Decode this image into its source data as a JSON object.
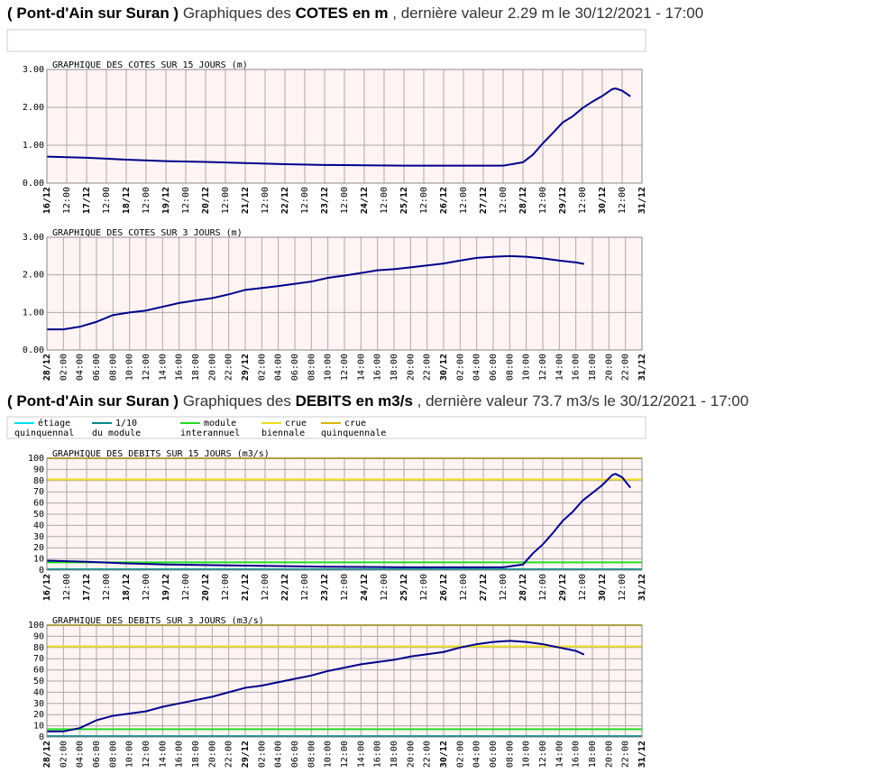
{
  "headings": [
    {
      "parts": [
        {
          "text": "( Pont-d'Ain sur Suran )",
          "bold": true
        },
        {
          "text": " Graphiques des ",
          "bold": false
        },
        {
          "text": "COTES en m",
          "bold": true
        },
        {
          "text": " , dernière valeur 2.29 m le 30/12/2021 - 17:00",
          "bold": false
        }
      ]
    },
    {
      "parts": [
        {
          "text": "( Pont-d'Ain sur Suran )",
          "bold": true
        },
        {
          "text": " Graphiques des ",
          "bold": false
        },
        {
          "text": "DEBITS en m3/s",
          "bold": true
        },
        {
          "text": " , dernière valeur 73.7 m3/s le 30/12/2021 - 17:00",
          "bold": false
        }
      ]
    }
  ],
  "chart_data": [
    {
      "type": "line",
      "title": "GRAPHIQUE DES COTES SUR 15 JOURS (m)",
      "color": "#00008b",
      "grid": true,
      "x": [
        "16/12 00:00",
        "17/12 00:00",
        "18/12 00:00",
        "19/12 00:00",
        "20/12 00:00",
        "21/12 00:00",
        "22/12 00:00",
        "23/12 00:00",
        "24/12 00:00",
        "25/12 00:00",
        "26/12 00:00",
        "27/12 00:00",
        "27/12 12:00",
        "28/12 00:00",
        "28/12 06:00",
        "28/12 12:00",
        "28/12 18:00",
        "29/12 00:00",
        "29/12 06:00",
        "29/12 12:00",
        "29/12 18:00",
        "30/12 00:00",
        "30/12 06:00",
        "30/12 08:00",
        "30/12 12:00",
        "30/12 17:00"
      ],
      "values": [
        0.7,
        0.67,
        0.62,
        0.58,
        0.56,
        0.53,
        0.5,
        0.48,
        0.47,
        0.46,
        0.46,
        0.46,
        0.46,
        0.55,
        0.75,
        1.05,
        1.32,
        1.6,
        1.76,
        1.98,
        2.15,
        2.3,
        2.48,
        2.5,
        2.44,
        2.29
      ],
      "ylim": [
        0,
        3
      ],
      "yticks": [
        {
          "value": 0,
          "label": "0.00"
        },
        {
          "value": 1,
          "label": "1.00"
        },
        {
          "value": 2,
          "label": "2.00"
        },
        {
          "value": 3,
          "label": "3.00"
        }
      ],
      "xlim": [
        "16/12 00:00",
        "31/12 00:00"
      ],
      "xticks": [
        {
          "value": "16/12 00:00",
          "label": "16/12"
        },
        {
          "value": "16/12 12:00",
          "label": "12:00"
        },
        {
          "value": "17/12 00:00",
          "label": "17/12"
        },
        {
          "value": "17/12 12:00",
          "label": "12:00"
        },
        {
          "value": "18/12 00:00",
          "label": "18/12"
        },
        {
          "value": "18/12 12:00",
          "label": "12:00"
        },
        {
          "value": "19/12 00:00",
          "label": "19/12"
        },
        {
          "value": "19/12 12:00",
          "label": "12:00"
        },
        {
          "value": "20/12 00:00",
          "label": "20/12"
        },
        {
          "value": "20/12 12:00",
          "label": "12:00"
        },
        {
          "value": "21/12 00:00",
          "label": "21/12"
        },
        {
          "value": "21/12 12:00",
          "label": "12:00"
        },
        {
          "value": "22/12 00:00",
          "label": "22/12"
        },
        {
          "value": "22/12 12:00",
          "label": "12:00"
        },
        {
          "value": "23/12 00:00",
          "label": "23/12"
        },
        {
          "value": "23/12 12:00",
          "label": "12:00"
        },
        {
          "value": "24/12 00:00",
          "label": "24/12"
        },
        {
          "value": "24/12 12:00",
          "label": "12:00"
        },
        {
          "value": "25/12 00:00",
          "label": "25/12"
        },
        {
          "value": "25/12 12:00",
          "label": "12:00"
        },
        {
          "value": "26/12 00:00",
          "label": "26/12"
        },
        {
          "value": "26/12 12:00",
          "label": "12:00"
        },
        {
          "value": "27/12 00:00",
          "label": "27/12"
        },
        {
          "value": "27/12 12:00",
          "label": "12:00"
        },
        {
          "value": "28/12 00:00",
          "label": "28/12"
        },
        {
          "value": "28/12 12:00",
          "label": "12:00"
        },
        {
          "value": "29/12 00:00",
          "label": "29/12"
        },
        {
          "value": "29/12 12:00",
          "label": "12:00"
        },
        {
          "value": "30/12 00:00",
          "label": "30/12"
        },
        {
          "value": "30/12 12:00",
          "label": "12:00"
        },
        {
          "value": "31/12 00:00",
          "label": "31/12"
        }
      ]
    },
    {
      "type": "line",
      "title": "GRAPHIQUE DES COTES SUR 3 JOURS (m)",
      "color": "#00008b",
      "grid": true,
      "x": [
        "28/12 00:00",
        "28/12 02:00",
        "28/12 04:00",
        "28/12 06:00",
        "28/12 08:00",
        "28/12 10:00",
        "28/12 12:00",
        "28/12 14:00",
        "28/12 16:00",
        "28/12 18:00",
        "28/12 20:00",
        "28/12 22:00",
        "29/12 00:00",
        "29/12 02:00",
        "29/12 04:00",
        "29/12 06:00",
        "29/12 08:00",
        "29/12 10:00",
        "29/12 12:00",
        "29/12 14:00",
        "29/12 16:00",
        "29/12 18:00",
        "29/12 20:00",
        "29/12 22:00",
        "30/12 00:00",
        "30/12 02:00",
        "30/12 04:00",
        "30/12 06:00",
        "30/12 08:00",
        "30/12 10:00",
        "30/12 12:00",
        "30/12 14:00",
        "30/12 16:00",
        "30/12 17:00"
      ],
      "values": [
        0.55,
        0.55,
        0.62,
        0.75,
        0.93,
        1.0,
        1.05,
        1.15,
        1.25,
        1.32,
        1.38,
        1.48,
        1.6,
        1.65,
        1.7,
        1.76,
        1.82,
        1.92,
        1.98,
        2.05,
        2.12,
        2.15,
        2.2,
        2.25,
        2.3,
        2.38,
        2.45,
        2.48,
        2.5,
        2.48,
        2.44,
        2.38,
        2.33,
        2.29
      ],
      "ylim": [
        0,
        3
      ],
      "yticks": [
        {
          "value": 0,
          "label": "0.00"
        },
        {
          "value": 1,
          "label": "1.00"
        },
        {
          "value": 2,
          "label": "2.00"
        },
        {
          "value": 3,
          "label": "3.00"
        }
      ],
      "xlim": [
        "28/12 00:00",
        "31/12 00:00"
      ],
      "xticks": [
        {
          "value": "28/12 00:00",
          "label": "28/12"
        },
        {
          "value": "28/12 02:00",
          "label": "02:00"
        },
        {
          "value": "28/12 04:00",
          "label": "04:00"
        },
        {
          "value": "28/12 06:00",
          "label": "06:00"
        },
        {
          "value": "28/12 08:00",
          "label": "08:00"
        },
        {
          "value": "28/12 10:00",
          "label": "10:00"
        },
        {
          "value": "28/12 12:00",
          "label": "12:00"
        },
        {
          "value": "28/12 14:00",
          "label": "14:00"
        },
        {
          "value": "28/12 16:00",
          "label": "16:00"
        },
        {
          "value": "28/12 18:00",
          "label": "18:00"
        },
        {
          "value": "28/12 20:00",
          "label": "20:00"
        },
        {
          "value": "28/12 22:00",
          "label": "22:00"
        },
        {
          "value": "29/12 00:00",
          "label": "29/12"
        },
        {
          "value": "29/12 02:00",
          "label": "02:00"
        },
        {
          "value": "29/12 04:00",
          "label": "04:00"
        },
        {
          "value": "29/12 06:00",
          "label": "06:00"
        },
        {
          "value": "29/12 08:00",
          "label": "08:00"
        },
        {
          "value": "29/12 10:00",
          "label": "10:00"
        },
        {
          "value": "29/12 12:00",
          "label": "12:00"
        },
        {
          "value": "29/12 14:00",
          "label": "14:00"
        },
        {
          "value": "29/12 16:00",
          "label": "16:00"
        },
        {
          "value": "29/12 18:00",
          "label": "18:00"
        },
        {
          "value": "29/12 20:00",
          "label": "20:00"
        },
        {
          "value": "29/12 22:00",
          "label": "22:00"
        },
        {
          "value": "30/12 00:00",
          "label": "30/12"
        },
        {
          "value": "30/12 02:00",
          "label": "02:00"
        },
        {
          "value": "30/12 04:00",
          "label": "04:00"
        },
        {
          "value": "30/12 06:00",
          "label": "06:00"
        },
        {
          "value": "30/12 08:00",
          "label": "08:00"
        },
        {
          "value": "30/12 10:00",
          "label": "10:00"
        },
        {
          "value": "30/12 12:00",
          "label": "12:00"
        },
        {
          "value": "30/12 14:00",
          "label": "14:00"
        },
        {
          "value": "30/12 16:00",
          "label": "16:00"
        },
        {
          "value": "30/12 18:00",
          "label": "18:00"
        },
        {
          "value": "30/12 20:00",
          "label": "20:00"
        },
        {
          "value": "30/12 22:00",
          "label": "22:00"
        },
        {
          "value": "31/12 00:00",
          "label": "31/12"
        }
      ]
    },
    {
      "type": "line",
      "title": "GRAPHIQUE DES DEBITS SUR 15 JOURS (m3/s)",
      "color": "#00008b",
      "grid": true,
      "reference_lines": [
        {
          "name": [
            "étiage",
            "quinquennal"
          ],
          "color": "#00e0ee",
          "value": 0.5
        },
        {
          "name": [
            "1/10",
            "du module"
          ],
          "color": "#008b8b",
          "value": 0.7
        },
        {
          "name": [
            "module",
            "interannuel"
          ],
          "color": "#22dd22",
          "value": 7
        },
        {
          "name": [
            "crue",
            "biennale"
          ],
          "color": "#f0e020",
          "value": 81
        },
        {
          "name": [
            "crue",
            "quinquennale"
          ],
          "color": "#d8b800",
          "value": 100
        }
      ],
      "x": [
        "16/12 00:00",
        "17/12 00:00",
        "18/12 00:00",
        "19/12 00:00",
        "20/12 00:00",
        "21/12 00:00",
        "22/12 00:00",
        "23/12 00:00",
        "24/12 00:00",
        "25/12 00:00",
        "26/12 00:00",
        "27/12 00:00",
        "27/12 12:00",
        "28/12 00:00",
        "28/12 06:00",
        "28/12 12:00",
        "28/12 18:00",
        "29/12 00:00",
        "29/12 06:00",
        "29/12 12:00",
        "29/12 18:00",
        "30/12 00:00",
        "30/12 06:00",
        "30/12 08:00",
        "30/12 12:00",
        "30/12 17:00"
      ],
      "values": [
        8.5,
        7.5,
        6.0,
        5.0,
        4.5,
        4.0,
        3.5,
        3.0,
        2.8,
        2.5,
        2.5,
        2.5,
        2.5,
        5,
        15,
        23,
        33,
        44,
        52,
        62,
        69,
        76,
        85,
        86,
        83,
        73.7
      ],
      "ylim": [
        0,
        100
      ],
      "yticks": [
        0,
        10,
        20,
        30,
        40,
        50,
        60,
        70,
        80,
        90,
        100
      ],
      "xlim": [
        "16/12 00:00",
        "31/12 00:00"
      ],
      "xticks": [
        {
          "value": "16/12 00:00",
          "label": "16/12"
        },
        {
          "value": "16/12 12:00",
          "label": "12:00"
        },
        {
          "value": "17/12 00:00",
          "label": "17/12"
        },
        {
          "value": "17/12 12:00",
          "label": "12:00"
        },
        {
          "value": "18/12 00:00",
          "label": "18/12"
        },
        {
          "value": "18/12 12:00",
          "label": "12:00"
        },
        {
          "value": "19/12 00:00",
          "label": "19/12"
        },
        {
          "value": "19/12 12:00",
          "label": "12:00"
        },
        {
          "value": "20/12 00:00",
          "label": "20/12"
        },
        {
          "value": "20/12 12:00",
          "label": "12:00"
        },
        {
          "value": "21/12 00:00",
          "label": "21/12"
        },
        {
          "value": "21/12 12:00",
          "label": "12:00"
        },
        {
          "value": "22/12 00:00",
          "label": "22/12"
        },
        {
          "value": "22/12 12:00",
          "label": "12:00"
        },
        {
          "value": "23/12 00:00",
          "label": "23/12"
        },
        {
          "value": "23/12 12:00",
          "label": "12:00"
        },
        {
          "value": "24/12 00:00",
          "label": "24/12"
        },
        {
          "value": "24/12 12:00",
          "label": "12:00"
        },
        {
          "value": "25/12 00:00",
          "label": "25/12"
        },
        {
          "value": "25/12 12:00",
          "label": "12:00"
        },
        {
          "value": "26/12 00:00",
          "label": "26/12"
        },
        {
          "value": "26/12 12:00",
          "label": "12:00"
        },
        {
          "value": "27/12 00:00",
          "label": "27/12"
        },
        {
          "value": "27/12 12:00",
          "label": "12:00"
        },
        {
          "value": "28/12 00:00",
          "label": "28/12"
        },
        {
          "value": "28/12 12:00",
          "label": "12:00"
        },
        {
          "value": "29/12 00:00",
          "label": "29/12"
        },
        {
          "value": "29/12 12:00",
          "label": "12:00"
        },
        {
          "value": "30/12 00:00",
          "label": "30/12"
        },
        {
          "value": "30/12 12:00",
          "label": "12:00"
        },
        {
          "value": "31/12 00:00",
          "label": "31/12"
        }
      ]
    },
    {
      "type": "line",
      "title": "GRAPHIQUE DES DEBITS SUR 3 JOURS (m3/s)",
      "color": "#00008b",
      "grid": true,
      "reference_lines": [
        {
          "color": "#00e0ee",
          "value": 0.5
        },
        {
          "color": "#008b8b",
          "value": 0.7
        },
        {
          "color": "#22dd22",
          "value": 7
        },
        {
          "color": "#f0e020",
          "value": 81
        },
        {
          "color": "#d8b800",
          "value": 100
        }
      ],
      "x": [
        "28/12 00:00",
        "28/12 02:00",
        "28/12 04:00",
        "28/12 06:00",
        "28/12 08:00",
        "28/12 10:00",
        "28/12 12:00",
        "28/12 14:00",
        "28/12 16:00",
        "28/12 18:00",
        "28/12 20:00",
        "28/12 22:00",
        "29/12 00:00",
        "29/12 02:00",
        "29/12 04:00",
        "29/12 06:00",
        "29/12 08:00",
        "29/12 10:00",
        "29/12 12:00",
        "29/12 14:00",
        "29/12 16:00",
        "29/12 18:00",
        "29/12 20:00",
        "29/12 22:00",
        "30/12 00:00",
        "30/12 02:00",
        "30/12 04:00",
        "30/12 06:00",
        "30/12 08:00",
        "30/12 10:00",
        "30/12 12:00",
        "30/12 14:00",
        "30/12 16:00",
        "30/12 17:00"
      ],
      "values": [
        5,
        5,
        8,
        15,
        19,
        21,
        23,
        27,
        30,
        33,
        36,
        40,
        44,
        46,
        49,
        52,
        55,
        59,
        62,
        65,
        67,
        69,
        72,
        74,
        76,
        80,
        83,
        85,
        86,
        85,
        83,
        80,
        77,
        73.7
      ],
      "ylim": [
        0,
        100
      ],
      "yticks": [
        0,
        10,
        20,
        30,
        40,
        50,
        60,
        70,
        80,
        90,
        100
      ],
      "xlim": [
        "28/12 00:00",
        "31/12 00:00"
      ],
      "xticks": [
        {
          "value": "28/12 00:00",
          "label": "28/12"
        },
        {
          "value": "28/12 02:00",
          "label": "02:00"
        },
        {
          "value": "28/12 04:00",
          "label": "04:00"
        },
        {
          "value": "28/12 06:00",
          "label": "06:00"
        },
        {
          "value": "28/12 08:00",
          "label": "08:00"
        },
        {
          "value": "28/12 10:00",
          "label": "10:00"
        },
        {
          "value": "28/12 12:00",
          "label": "12:00"
        },
        {
          "value": "28/12 14:00",
          "label": "14:00"
        },
        {
          "value": "28/12 16:00",
          "label": "16:00"
        },
        {
          "value": "28/12 18:00",
          "label": "18:00"
        },
        {
          "value": "28/12 20:00",
          "label": "20:00"
        },
        {
          "value": "28/12 22:00",
          "label": "22:00"
        },
        {
          "value": "29/12 00:00",
          "label": "29/12"
        },
        {
          "value": "29/12 02:00",
          "label": "02:00"
        },
        {
          "value": "29/12 04:00",
          "label": "04:00"
        },
        {
          "value": "29/12 06:00",
          "label": "06:00"
        },
        {
          "value": "29/12 08:00",
          "label": "08:00"
        },
        {
          "value": "29/12 10:00",
          "label": "10:00"
        },
        {
          "value": "29/12 12:00",
          "label": "12:00"
        },
        {
          "value": "29/12 14:00",
          "label": "14:00"
        },
        {
          "value": "29/12 16:00",
          "label": "16:00"
        },
        {
          "value": "29/12 18:00",
          "label": "18:00"
        },
        {
          "value": "29/12 20:00",
          "label": "20:00"
        },
        {
          "value": "29/12 22:00",
          "label": "22:00"
        },
        {
          "value": "30/12 00:00",
          "label": "30/12"
        },
        {
          "value": "30/12 02:00",
          "label": "02:00"
        },
        {
          "value": "30/12 04:00",
          "label": "04:00"
        },
        {
          "value": "30/12 06:00",
          "label": "06:00"
        },
        {
          "value": "30/12 08:00",
          "label": "08:00"
        },
        {
          "value": "30/12 10:00",
          "label": "10:00"
        },
        {
          "value": "30/12 12:00",
          "label": "12:00"
        },
        {
          "value": "30/12 14:00",
          "label": "14:00"
        },
        {
          "value": "30/12 16:00",
          "label": "16:00"
        },
        {
          "value": "30/12 18:00",
          "label": "18:00"
        },
        {
          "value": "30/12 20:00",
          "label": "20:00"
        },
        {
          "value": "30/12 22:00",
          "label": "22:00"
        },
        {
          "value": "31/12 00:00",
          "label": "31/12"
        }
      ]
    }
  ]
}
